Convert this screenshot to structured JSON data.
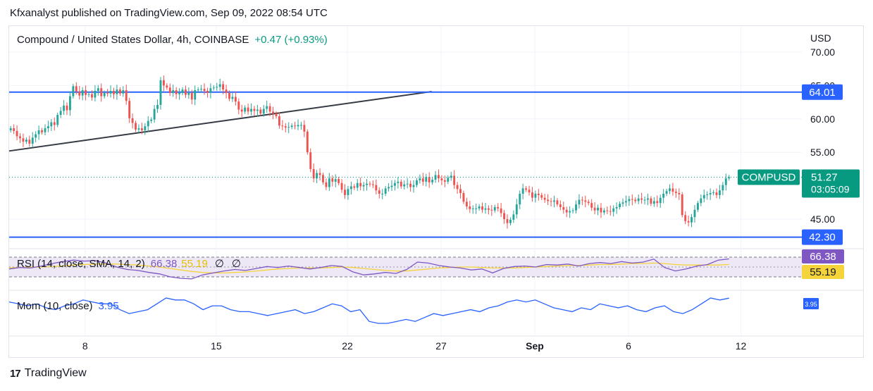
{
  "publisher_line": "Kfxanalyst published on TradingView.com, Sep 09, 2022 08:54 UTC",
  "footer": {
    "logo_glyph": "17",
    "brand": "TradingView"
  },
  "colors": {
    "up": "#26a69a",
    "down": "#ef5350",
    "level_line": "#2962ff",
    "trend_line": "#363a45",
    "rsi_line": "#7e57c2",
    "rsi_sma": "#f5d33b",
    "mom_line": "#2962ff",
    "tag_bg": "#089981",
    "rsi_band": "#ede7f6"
  },
  "chart_data": [
    {
      "type": "candlestick",
      "title": "Compound / United States Dollar, 4h, COINBASE",
      "change": "+0.47 (+0.93%)",
      "currency_label": "USD",
      "ylim": [
        42.3,
        71.0
      ],
      "y_ticks": [
        "70.00",
        "65.00",
        "60.00",
        "55.00",
        "45.00"
      ],
      "x_ticks": [
        {
          "label": "8",
          "day": 8
        },
        {
          "label": "15",
          "day": 15
        },
        {
          "label": "22",
          "day": 22
        },
        {
          "label": "27",
          "day": 27
        },
        {
          "label": "Sep",
          "day": 32,
          "bold": true
        },
        {
          "label": "6",
          "day": 37
        },
        {
          "label": "12",
          "day": 43
        }
      ],
      "xlim_days": [
        3.95,
        46.25
      ],
      "horizontal_levels": [
        {
          "value": 64.01,
          "label": "64.01"
        },
        {
          "value": 42.3,
          "label": "42.30"
        }
      ],
      "trend_line": {
        "from": {
          "day": 3.95,
          "value": 55.2
        },
        "to": {
          "day": 26.5,
          "value": 64.1
        }
      },
      "last_price": {
        "symbol": "COMPUSD",
        "value": 51.27,
        "label": "51.27",
        "countdown": "03:05:09"
      },
      "first_day": 3.95,
      "candles_per_day": 6,
      "closes": [
        58.6,
        58.2,
        57.4,
        57.1,
        56.6,
        56.9,
        56.3,
        57.2,
        57.7,
        58.3,
        58.0,
        58.6,
        58.9,
        59.5,
        59.1,
        60.6,
        61.2,
        62.0,
        61.3,
        63.4,
        64.9,
        64.1,
        63.5,
        64.3,
        63.6,
        63.7,
        63.2,
        64.2,
        64.6,
        63.4,
        63.9,
        63.8,
        64.2,
        63.7,
        64.4,
        63.8,
        64.3,
        62.7,
        60.1,
        59.4,
        58.4,
        58.6,
        58.3,
        58.9,
        59.7,
        59.9,
        61.5,
        62.1,
        65.8,
        65.0,
        64.7,
        63.9,
        64.3,
        63.7,
        63.9,
        64.4,
        63.6,
        63.9,
        62.9,
        64.3,
        64.4,
        64.5,
        64.2,
        63.9,
        64.6,
        64.7,
        64.8,
        65.2,
        64.4,
        63.9,
        63.0,
        63.3,
        62.6,
        61.4,
        61.1,
        61.7,
        61.1,
        61.5,
        61.2,
        61.4,
        60.8,
        61.5,
        61.9,
        61.1,
        60.8,
        60.4,
        59.0,
        58.9,
        58.7,
        58.8,
        59.0,
        58.9,
        59.1,
        59.1,
        58.1,
        55.0,
        52.5,
        51.1,
        51.9,
        51.6,
        50.5,
        49.8,
        51.1,
        50.6,
        51.0,
        50.4,
        49.4,
        48.6,
        49.5,
        49.9,
        49.7,
        50.4,
        49.9,
        50.1,
        50.3,
        50.2,
        50.1,
        49.3,
        48.8,
        48.8,
        49.6,
        49.8,
        50.0,
        50.4,
        50.6,
        49.9,
        50.2,
        50.3,
        49.8,
        50.1,
        50.8,
        51.1,
        50.6,
        51.3,
        50.5,
        50.9,
        51.6,
        51.1,
        50.8,
        50.6,
        51.2,
        51.5,
        50.1,
        49.5,
        48.9,
        47.6,
        46.9,
        46.5,
        46.6,
        46.6,
        46.9,
        46.4,
        46.6,
        46.4,
        46.3,
        46.8,
        46.6,
        45.9,
        45.0,
        44.4,
        44.9,
        45.7,
        47.2,
        48.8,
        49.6,
        49.4,
        49.0,
        48.2,
        48.8,
        48.6,
        48.2,
        47.9,
        47.7,
        47.6,
        47.8,
        47.2,
        46.8,
        46.4,
        46.0,
        46.2,
        46.3,
        47.2,
        47.9,
        47.8,
        47.6,
        47.4,
        46.7,
        46.3,
        46.7,
        46.0,
        46.3,
        46.2,
        46.1,
        46.6,
        46.8,
        47.3,
        47.5,
        47.7,
        48.0,
        47.9,
        47.7,
        48.1,
        47.9,
        47.9,
        48.1,
        47.3,
        47.7,
        47.4,
        48.2,
        48.8,
        49.2,
        49.6,
        49.1,
        48.9,
        48.7,
        45.6,
        44.7,
        44.5,
        45.3,
        46.4,
        47.4,
        48.1,
        48.6,
        48.7,
        48.9,
        49.0,
        48.6,
        49.3,
        50.1,
        51.1,
        51.27
      ]
    },
    {
      "type": "line",
      "indicator_label": "RSI (14, close, SMA, 14, 2)",
      "rsi_value": "66.38",
      "sma_value": "55.19",
      "icons": [
        "∅",
        "∅"
      ],
      "ylim": [
        20,
        80
      ],
      "band": [
        30,
        70
      ],
      "series_rsi": [
        46,
        49,
        48,
        52,
        57,
        61,
        64,
        62,
        63,
        58,
        50,
        45,
        43,
        39,
        36,
        30,
        27,
        26,
        34,
        38,
        42,
        45,
        43,
        47,
        51,
        49,
        52,
        49,
        46,
        49,
        53,
        51,
        40,
        34,
        36,
        39,
        37,
        45,
        60,
        58,
        53,
        50,
        48,
        44,
        46,
        38,
        47,
        51,
        52,
        50,
        55,
        54,
        56,
        52,
        57,
        59,
        57,
        61,
        58,
        60,
        66,
        49,
        42,
        46,
        52,
        55,
        64,
        66.38
      ],
      "series_sma": [
        48,
        49,
        50,
        50,
        51,
        52,
        54,
        55,
        56,
        56,
        56,
        55,
        54,
        52,
        50,
        47,
        44,
        41,
        39,
        38,
        38,
        39,
        40,
        42,
        44,
        46,
        47,
        48,
        48,
        48,
        49,
        50,
        49,
        47,
        45,
        43,
        42,
        42,
        44,
        46,
        48,
        49,
        50,
        50,
        49,
        48,
        48,
        48,
        49,
        50,
        51,
        52,
        53,
        53,
        54,
        55,
        55,
        56,
        57,
        57,
        58,
        57,
        55,
        54,
        54,
        54,
        54,
        55.19
      ]
    },
    {
      "type": "line",
      "indicator_label": "Mom (10, close)",
      "mom_value": "3.95",
      "ylim": [
        -13,
        8
      ],
      "series_mom": [
        2,
        1,
        0,
        1,
        -1,
        -2,
        0,
        1,
        3,
        2,
        1,
        1,
        -2,
        -4,
        -3,
        -2,
        1,
        4,
        3,
        3,
        1,
        -2,
        0,
        0,
        -2,
        -3,
        -3,
        -4,
        -5,
        -4,
        -3,
        -2,
        -4,
        -3,
        -1,
        1,
        0,
        -3,
        -2,
        -8,
        -9,
        -9,
        -8,
        -7,
        -8,
        -6,
        -4,
        -5,
        -4,
        -3,
        -2,
        -3,
        -1,
        0,
        2,
        3,
        2,
        3,
        1,
        -1,
        -2,
        -3,
        -1,
        -2,
        1,
        0,
        -1,
        0,
        -2,
        -3,
        -1,
        0,
        -3,
        -4,
        -2,
        1,
        4,
        3,
        3.95
      ]
    }
  ]
}
